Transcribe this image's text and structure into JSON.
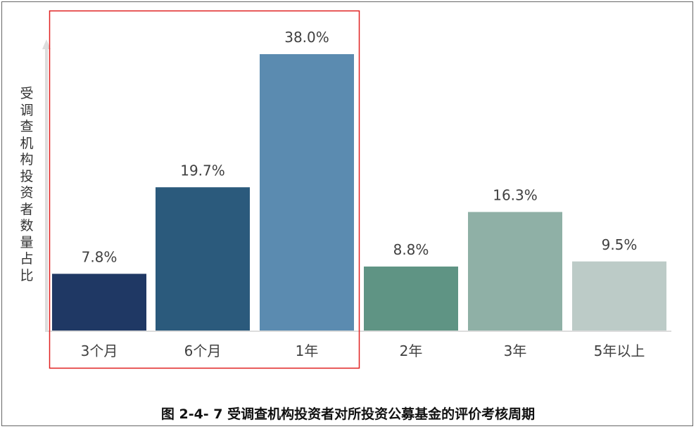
{
  "chart_data": {
    "type": "bar",
    "categories": [
      "3个月",
      "6个月",
      "1年",
      "2年",
      "3年",
      "5年以上"
    ],
    "values": [
      7.8,
      19.7,
      38.0,
      8.8,
      16.3,
      9.5
    ],
    "value_labels": [
      "7.8%",
      "19.7%",
      "38.0%",
      "8.8%",
      "16.3%",
      "9.5%"
    ],
    "colors": [
      "#1f3864",
      "#2b5a7c",
      "#5b8bb0",
      "#5f9484",
      "#8fb0a6",
      "#bccbc7"
    ],
    "ylabel": "受调查机构投资者数量占比",
    "ylim": [
      0,
      40
    ],
    "grid": false,
    "highlight": {
      "categories": [
        "3个月",
        "6个月",
        "1年"
      ],
      "color": "#e02020"
    }
  },
  "caption": "图 2-4- 7  受调查机构投资者对所投资公募基金的评价考核周期"
}
